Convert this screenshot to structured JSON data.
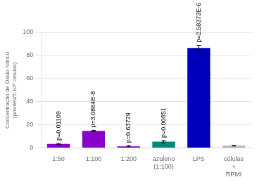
{
  "chart_data": {
    "type": "bar",
    "categories": [
      "1:50",
      "1:100",
      "1:200",
      "azuleno\n(1:100)",
      "LPS",
      "células\n+\nRPMI"
    ],
    "values": [
      3.5,
      14.8,
      1.5,
      5.5,
      86.5,
      2.0
    ],
    "errors": [
      0.5,
      0.4,
      0.6,
      1.0,
      2.2,
      0.25
    ],
    "colors": [
      "#8800cc",
      "#8800cc",
      "#8800cc",
      "#008878",
      "#0000bb",
      "#b8b8b8"
    ],
    "annotations": [
      "p=0.01109",
      "p=3.0864E-8",
      "p=0.63729",
      "p=0.00851",
      "p=2.58373E-6",
      null
    ],
    "ylabel": "Concentração de Óxido Nítrico\n(µmoles/5.10⁶ células)",
    "ylim": [
      0,
      100
    ],
    "yticks": [
      0,
      20,
      40,
      60,
      80,
      100
    ],
    "grid": true
  }
}
